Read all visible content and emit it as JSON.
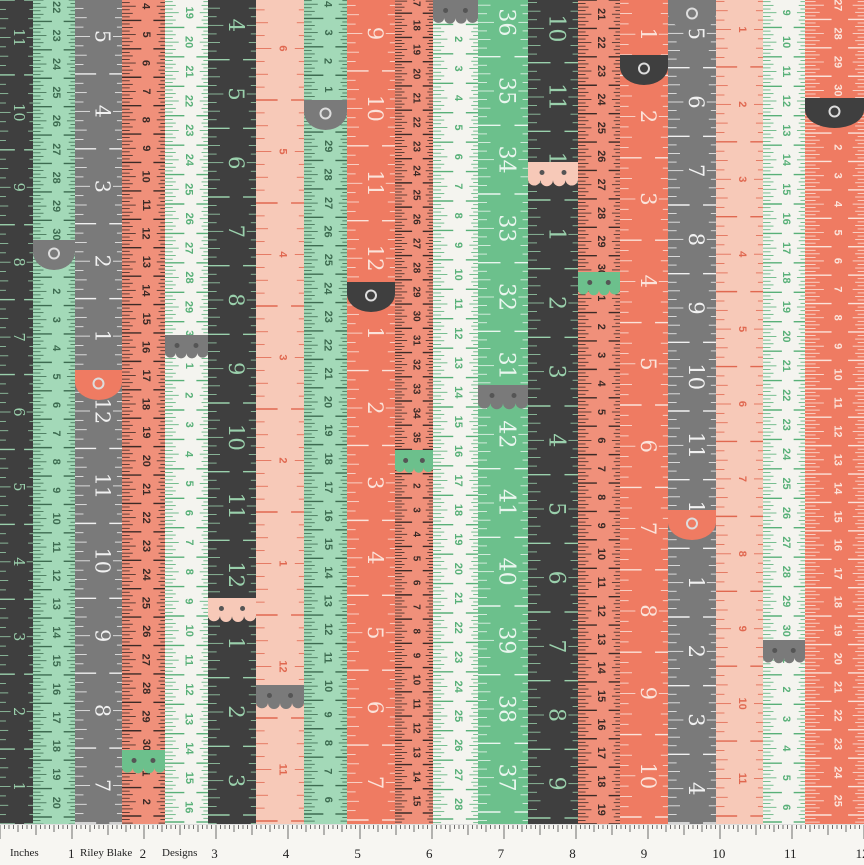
{
  "colors": {
    "charcoal": "#3f3f3f",
    "mint": "#a3d9b8",
    "gray": "#7a7a7a",
    "salmon": "#f0907a",
    "white": "#f4f4ef",
    "peach": "#f7c9b8",
    "coral": "#ef7b62",
    "green": "#6cc08c"
  },
  "tapes": [
    {
      "id": "t1",
      "color": "charcoal",
      "ink": "#9ad0ac",
      "nums": [
        "11",
        "10",
        "9",
        "8",
        "7",
        "6",
        "5",
        "4",
        "3",
        "2",
        "1"
      ],
      "big": true
    },
    {
      "id": "t2",
      "color": "mint",
      "ink": "#3d6b50",
      "nums": [
        "22",
        "23",
        "24",
        "25",
        "26",
        "27",
        "28",
        "29",
        "30",
        "1",
        "2",
        "3",
        "4",
        "5",
        "6",
        "7",
        "8",
        "9",
        "10",
        "11",
        "12",
        "13",
        "14",
        "15",
        "16",
        "17",
        "18",
        "19",
        "20"
      ],
      "big": false
    },
    {
      "id": "t3",
      "color": "gray",
      "ink": "#f1f1f1",
      "nums": [
        "5",
        "4",
        "3",
        "2",
        "1",
        "12",
        "11",
        "10",
        "9",
        "8",
        "7"
      ],
      "big": true
    },
    {
      "id": "t4",
      "color": "salmon",
      "ink": "#3b2a26",
      "nums": [
        "4",
        "5",
        "6",
        "7",
        "8",
        "9",
        "10",
        "11",
        "12",
        "13",
        "14",
        "15",
        "16",
        "17",
        "18",
        "19",
        "20",
        "21",
        "22",
        "23",
        "24",
        "25",
        "26",
        "27",
        "28",
        "29",
        "30",
        "1",
        "2"
      ],
      "big": false
    },
    {
      "id": "t5",
      "color": "white",
      "ink": "#58b078",
      "nums": [
        "19",
        "20",
        "21",
        "22",
        "23",
        "24",
        "25",
        "26",
        "27",
        "28",
        "29",
        "30",
        "1",
        "2",
        "3",
        "4",
        "5",
        "6",
        "7",
        "8",
        "9",
        "10",
        "11",
        "12",
        "13",
        "14",
        "15",
        "16"
      ],
      "big": false
    },
    {
      "id": "t6",
      "color": "charcoal",
      "ink": "#9ad0ac",
      "nums": [
        "4",
        "5",
        "6",
        "7",
        "8",
        "9",
        "10",
        "11",
        "12",
        "1",
        "2",
        "3"
      ],
      "big": true
    },
    {
      "id": "t7",
      "color": "peach",
      "ink": "#e06850",
      "nums": [
        "6",
        "5",
        "4",
        "3",
        "2",
        "1",
        "12",
        "11"
      ],
      "big": false
    },
    {
      "id": "t8",
      "color": "mint",
      "ink": "#3d6b50",
      "nums": [
        "4",
        "3",
        "2",
        "1",
        "30",
        "29",
        "28",
        "27",
        "26",
        "25",
        "24",
        "23",
        "22",
        "21",
        "20",
        "19",
        "18",
        "17",
        "16",
        "15",
        "14",
        "13",
        "12",
        "11",
        "10",
        "9",
        "8",
        "7",
        "6"
      ],
      "big": false
    },
    {
      "id": "t9",
      "color": "coral",
      "ink": "#fbe3da",
      "nums": [
        "9",
        "10",
        "11",
        "12",
        "1",
        "2",
        "3",
        "4",
        "5",
        "6",
        "7"
      ],
      "big": true
    },
    {
      "id": "t10",
      "color": "salmon",
      "ink": "#3b2a26",
      "nums": [
        "17",
        "18",
        "19",
        "20",
        "21",
        "22",
        "23",
        "24",
        "25",
        "26",
        "27",
        "28",
        "29",
        "30",
        "31",
        "32",
        "33",
        "34",
        "35",
        "1",
        "2",
        "3",
        "4",
        "5",
        "6",
        "7",
        "8",
        "9",
        "10",
        "11",
        "12",
        "13",
        "14",
        "15"
      ],
      "big": false
    },
    {
      "id": "t11",
      "color": "white",
      "ink": "#58b078",
      "nums": [
        "1",
        "2",
        "3",
        "4",
        "5",
        "6",
        "7",
        "8",
        "9",
        "10",
        "11",
        "12",
        "13",
        "14",
        "15",
        "16",
        "17",
        "18",
        "19",
        "20",
        "21",
        "22",
        "23",
        "24",
        "25",
        "26",
        "27",
        "28"
      ],
      "big": false
    },
    {
      "id": "t12",
      "color": "green",
      "ink": "#e9f6ee",
      "nums": [
        "36",
        "35",
        "34",
        "33",
        "32",
        "31",
        "42",
        "41",
        "40",
        "39",
        "38",
        "37"
      ],
      "big": true
    },
    {
      "id": "t13",
      "color": "charcoal",
      "ink": "#9ad0ac",
      "nums": [
        "10",
        "11",
        "12",
        "1",
        "2",
        "3",
        "4",
        "5",
        "6",
        "7",
        "8",
        "9"
      ],
      "big": true
    },
    {
      "id": "t14",
      "color": "salmon",
      "ink": "#3b2a26",
      "nums": [
        "21",
        "22",
        "23",
        "24",
        "25",
        "26",
        "27",
        "28",
        "29",
        "30",
        "1",
        "2",
        "3",
        "4",
        "5",
        "6",
        "7",
        "8",
        "9",
        "10",
        "11",
        "12",
        "13",
        "14",
        "15",
        "16",
        "17",
        "18",
        "19"
      ],
      "big": false
    },
    {
      "id": "t15",
      "color": "coral",
      "ink": "#fbe3da",
      "nums": [
        "1",
        "2",
        "3",
        "4",
        "5",
        "6",
        "7",
        "8",
        "9",
        "10"
      ],
      "big": true
    },
    {
      "id": "t16",
      "color": "gray",
      "ink": "#f1f1f1",
      "nums": [
        "5",
        "6",
        "7",
        "8",
        "9",
        "10",
        "11",
        "12",
        "1",
        "2",
        "3",
        "4"
      ],
      "big": true
    },
    {
      "id": "t17",
      "color": "peach",
      "ink": "#e06850",
      "nums": [
        "1",
        "2",
        "3",
        "4",
        "5",
        "6",
        "7",
        "8",
        "9",
        "10",
        "11"
      ],
      "big": false
    },
    {
      "id": "t18",
      "color": "white",
      "ink": "#58b078",
      "nums": [
        "9",
        "10",
        "11",
        "12",
        "13",
        "14",
        "15",
        "16",
        "17",
        "18",
        "19",
        "20",
        "21",
        "22",
        "23",
        "24",
        "25",
        "26",
        "27",
        "28",
        "29",
        "30",
        "1",
        "2",
        "3",
        "4",
        "5",
        "6"
      ],
      "big": false
    },
    {
      "id": "t19",
      "color": "coral",
      "ink": "#fbe3da",
      "nums": [
        "27",
        "28",
        "29",
        "30",
        "1",
        "2",
        "3",
        "4",
        "5",
        "6",
        "7",
        "8",
        "9",
        "10",
        "11",
        "12",
        "13",
        "14",
        "15",
        "16",
        "17",
        "18",
        "19",
        "20",
        "21",
        "22",
        "23",
        "24",
        "25"
      ],
      "big": false
    }
  ],
  "tabs": [
    {
      "tape": "t2",
      "shape": "round",
      "color": "gray"
    },
    {
      "tape": "t3",
      "shape": "round",
      "color": "coral"
    },
    {
      "tape": "t5",
      "shape": "scallop",
      "color": "gray"
    },
    {
      "tape": "t4",
      "shape": "scallop",
      "color": "green"
    },
    {
      "tape": "t6",
      "shape": "scallop",
      "color": "peach"
    },
    {
      "tape": "t7",
      "shape": "scallop",
      "color": "gray"
    },
    {
      "tape": "t8",
      "shape": "round",
      "color": "gray"
    },
    {
      "tape": "t9",
      "shape": "round",
      "color": "charcoal"
    },
    {
      "tape": "t10",
      "shape": "scallop",
      "color": "green"
    },
    {
      "tape": "t11",
      "shape": "scallop",
      "color": "gray"
    },
    {
      "tape": "t12",
      "shape": "scallop",
      "color": "gray"
    },
    {
      "tape": "t13",
      "shape": "scallop",
      "color": "peach"
    },
    {
      "tape": "t14",
      "shape": "scallop",
      "color": "green"
    },
    {
      "tape": "t15",
      "shape": "round",
      "color": "charcoal"
    },
    {
      "tape": "t16",
      "shape": "round",
      "color": "gray"
    },
    {
      "tape": "t16",
      "shape": "round",
      "color": "coral"
    },
    {
      "tape": "t18",
      "shape": "scallop",
      "color": "gray"
    },
    {
      "tape": "t19",
      "shape": "round",
      "color": "charcoal"
    }
  ],
  "selvage": {
    "unit_label": "Inches",
    "brand_left": "Riley Blake",
    "brand_right": "Designs",
    "inch_numbers": [
      "1",
      "2",
      "3",
      "4",
      "5",
      "6",
      "7",
      "8",
      "9",
      "10",
      "11",
      "12"
    ]
  }
}
